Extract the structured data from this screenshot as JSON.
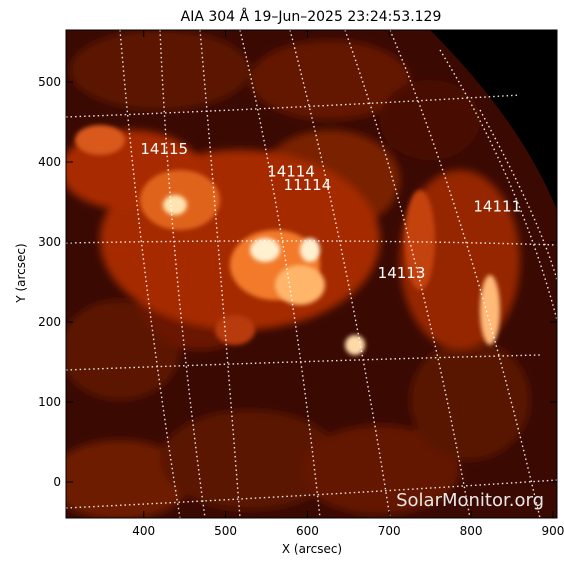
{
  "title": "AIA 304 Å 19–Jun–2025 23:24:53.129",
  "watermark": "SolarMonitor.org",
  "chart_data": {
    "type": "heatmap",
    "xlabel": "X (arcsec)",
    "ylabel": "Y (arcsec)",
    "xlim": [
      305,
      905
    ],
    "ylim": [
      -45,
      565
    ],
    "xticks": [
      400,
      500,
      600,
      700,
      800,
      900
    ],
    "yticks": [
      0,
      100,
      200,
      300,
      400,
      500
    ],
    "grid": "dotted heliographic grid",
    "colormap": "sdoaia304",
    "colors": {
      "background": "#1a0400",
      "mid": "#a02a05",
      "bright": "#ff9a4a",
      "hot": "#fff4d8"
    },
    "regions": [
      {
        "label": "14115",
        "x": 425,
        "y": 410
      },
      {
        "label": "14114",
        "x": 580,
        "y": 382
      },
      {
        "label": "11114",
        "x": 600,
        "y": 365
      },
      {
        "label": "14113",
        "x": 715,
        "y": 255
      },
      {
        "label": "14111",
        "x": 832,
        "y": 338
      }
    ]
  }
}
